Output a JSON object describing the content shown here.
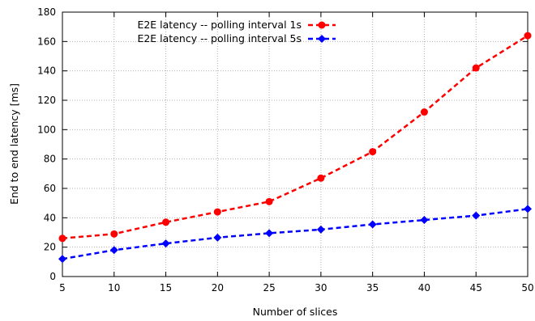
{
  "chart_data": {
    "type": "line",
    "xlabel": "Number of slices",
    "ylabel": "End to end latency [ms]",
    "x": [
      5,
      10,
      15,
      20,
      25,
      30,
      35,
      40,
      45,
      50
    ],
    "xlim": [
      5,
      50
    ],
    "ylim": [
      0,
      180
    ],
    "xticks": [
      "5",
      "10",
      "15",
      "20",
      "25",
      "30",
      "35",
      "40",
      "45",
      "50"
    ],
    "yticks": [
      "0",
      "20",
      "40",
      "60",
      "80",
      "100",
      "120",
      "140",
      "160",
      "180"
    ],
    "grid": true,
    "legend_position": "top-left",
    "series": [
      {
        "name": "E2E latency -- polling interval 1s",
        "color": "#ff0000",
        "marker": "circle",
        "line_style": "dashed",
        "values": [
          26,
          29,
          37,
          44,
          51,
          67,
          85,
          112,
          142,
          164
        ]
      },
      {
        "name": "E2E latency -- polling interval 5s",
        "color": "#0000ff",
        "marker": "diamond",
        "line_style": "dashed",
        "values": [
          12,
          18,
          22.5,
          26.5,
          29.5,
          32,
          35.5,
          38.5,
          41.5,
          46
        ]
      }
    ]
  }
}
